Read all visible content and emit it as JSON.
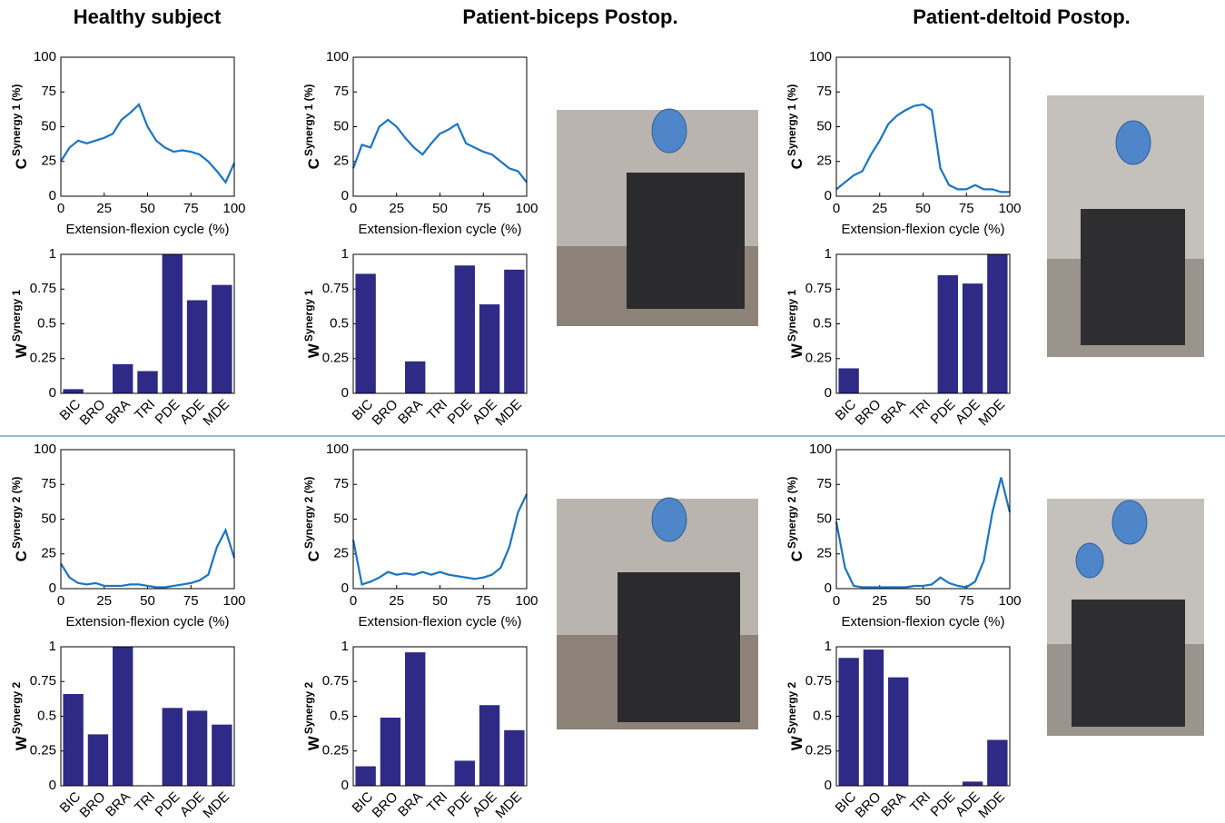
{
  "column_titles": [
    "Healthy subject",
    "Patient-biceps Postop.",
    "Patient-deltoid Postop."
  ],
  "chart_data": [
    {
      "type": "line",
      "ylabel": "C",
      "ylabel_sup": "Synergy 1 (%)",
      "xlabel": "Extension-flexion cycle (%)",
      "color": "#1a74c4",
      "x": [
        0,
        5,
        10,
        15,
        20,
        25,
        30,
        35,
        40,
        45,
        50,
        55,
        60,
        65,
        70,
        75,
        80,
        85,
        90,
        95,
        100
      ],
      "values": [
        25,
        35,
        40,
        38,
        40,
        42,
        45,
        55,
        60,
        66,
        50,
        40,
        35,
        32,
        33,
        32,
        30,
        25,
        18,
        10,
        24
      ],
      "xlim": [
        0,
        100
      ],
      "xticks": [
        0,
        25,
        50,
        75,
        100
      ],
      "ylim": [
        0,
        100
      ],
      "yticks": [
        0,
        25,
        50,
        75,
        100
      ]
    },
    {
      "type": "bar",
      "ylabel": "W",
      "ylabel_sup": "Synergy 1",
      "color": "#2e2a85",
      "categories": [
        "BIC",
        "BRO",
        "BRA",
        "TRI",
        "PDE",
        "ADE",
        "MDE"
      ],
      "values": [
        0.03,
        0,
        0.21,
        0.16,
        1,
        0.67,
        0.78
      ],
      "ylim": [
        0,
        1
      ],
      "yticks": [
        0,
        0.25,
        0.5,
        0.75,
        1
      ]
    },
    {
      "type": "line",
      "ylabel": "C",
      "ylabel_sup": "Synergy 1 (%)",
      "xlabel": "Extension-flexion cycle (%)",
      "color": "#1a74c4",
      "x": [
        0,
        5,
        10,
        15,
        20,
        25,
        30,
        35,
        40,
        45,
        50,
        55,
        60,
        65,
        70,
        75,
        80,
        85,
        90,
        95,
        100
      ],
      "values": [
        20,
        37,
        35,
        50,
        55,
        50,
        42,
        35,
        30,
        38,
        45,
        48,
        52,
        38,
        35,
        32,
        30,
        25,
        20,
        18,
        10
      ],
      "xlim": [
        0,
        100
      ],
      "xticks": [
        0,
        25,
        50,
        75,
        100
      ],
      "ylim": [
        0,
        100
      ],
      "yticks": [
        0,
        25,
        50,
        75,
        100
      ]
    },
    {
      "type": "bar",
      "ylabel": "W",
      "ylabel_sup": "Synergy 1",
      "color": "#2e2a85",
      "categories": [
        "BIC",
        "BRO",
        "BRA",
        "TRI",
        "PDE",
        "ADE",
        "MDE"
      ],
      "values": [
        0.86,
        0,
        0.23,
        0,
        0.92,
        0.64,
        0.89
      ],
      "ylim": [
        0,
        1
      ],
      "yticks": [
        0,
        0.25,
        0.5,
        0.75,
        1
      ]
    },
    {
      "type": "line",
      "ylabel": "C",
      "ylabel_sup": "Synergy 1 (%)",
      "xlabel": "Extension-flexion cycle (%)",
      "color": "#1a74c4",
      "x": [
        0,
        5,
        10,
        15,
        20,
        25,
        30,
        35,
        40,
        45,
        50,
        55,
        60,
        65,
        70,
        75,
        80,
        85,
        90,
        95,
        100
      ],
      "values": [
        5,
        10,
        15,
        18,
        30,
        40,
        52,
        58,
        62,
        65,
        66,
        62,
        20,
        8,
        5,
        5,
        8,
        5,
        5,
        3,
        3
      ],
      "xlim": [
        0,
        100
      ],
      "xticks": [
        0,
        25,
        50,
        75,
        100
      ],
      "ylim": [
        0,
        100
      ],
      "yticks": [
        0,
        25,
        50,
        75,
        100
      ]
    },
    {
      "type": "bar",
      "ylabel": "W",
      "ylabel_sup": "Synergy 1",
      "color": "#2e2a85",
      "categories": [
        "BIC",
        "BRO",
        "BRA",
        "TRI",
        "PDE",
        "ADE",
        "MDE"
      ],
      "values": [
        0.18,
        0,
        0,
        0,
        0.85,
        0.79,
        1
      ],
      "ylim": [
        0,
        1
      ],
      "yticks": [
        0,
        0.25,
        0.5,
        0.75,
        1
      ]
    },
    {
      "type": "line",
      "ylabel": "C",
      "ylabel_sup": "Synergy 2 (%)",
      "xlabel": "Extension-flexion cycle (%)",
      "color": "#1a74c4",
      "x": [
        0,
        5,
        10,
        15,
        20,
        25,
        30,
        35,
        40,
        45,
        50,
        55,
        60,
        65,
        70,
        75,
        80,
        85,
        90,
        95,
        100
      ],
      "values": [
        18,
        8,
        4,
        3,
        4,
        2,
        2,
        2,
        3,
        3,
        2,
        1,
        1,
        2,
        3,
        4,
        6,
        10,
        30,
        42,
        22
      ],
      "xlim": [
        0,
        100
      ],
      "xticks": [
        0,
        25,
        50,
        75,
        100
      ],
      "ylim": [
        0,
        100
      ],
      "yticks": [
        0,
        25,
        50,
        75,
        100
      ]
    },
    {
      "type": "bar",
      "ylabel": "W",
      "ylabel_sup": "Synergy 2",
      "color": "#2e2a85",
      "categories": [
        "BIC",
        "BRO",
        "BRA",
        "TRI",
        "PDE",
        "ADE",
        "MDE"
      ],
      "values": [
        0.66,
        0.37,
        1,
        0,
        0.56,
        0.54,
        0.44
      ],
      "ylim": [
        0,
        1
      ],
      "yticks": [
        0,
        0.25,
        0.5,
        0.75,
        1
      ]
    },
    {
      "type": "line",
      "ylabel": "C",
      "ylabel_sup": "Synergy 2 (%)",
      "xlabel": "Extension-flexion cycle (%)",
      "color": "#1a74c4",
      "x": [
        0,
        5,
        10,
        15,
        20,
        25,
        30,
        35,
        40,
        45,
        50,
        55,
        60,
        65,
        70,
        75,
        80,
        85,
        90,
        95,
        100
      ],
      "values": [
        35,
        3,
        5,
        8,
        12,
        10,
        11,
        10,
        12,
        10,
        12,
        10,
        9,
        8,
        7,
        8,
        10,
        15,
        30,
        55,
        68
      ],
      "xlim": [
        0,
        100
      ],
      "xticks": [
        0,
        25,
        50,
        75,
        100
      ],
      "ylim": [
        0,
        100
      ],
      "yticks": [
        0,
        25,
        50,
        75,
        100
      ]
    },
    {
      "type": "bar",
      "ylabel": "W",
      "ylabel_sup": "Synergy 2",
      "color": "#2e2a85",
      "categories": [
        "BIC",
        "BRO",
        "BRA",
        "TRI",
        "PDE",
        "ADE",
        "MDE"
      ],
      "values": [
        0.14,
        0.49,
        0.96,
        0,
        0.18,
        0.58,
        0.4
      ],
      "ylim": [
        0,
        1
      ],
      "yticks": [
        0,
        0.25,
        0.5,
        0.75,
        1
      ]
    },
    {
      "type": "line",
      "ylabel": "C",
      "ylabel_sup": "Synergy 2 (%)",
      "xlabel": "Extension-flexion cycle (%)",
      "color": "#1a74c4",
      "x": [
        0,
        5,
        10,
        15,
        20,
        25,
        30,
        35,
        40,
        45,
        50,
        55,
        60,
        65,
        70,
        75,
        80,
        85,
        90,
        95,
        100
      ],
      "values": [
        48,
        15,
        2,
        1,
        1,
        1,
        1,
        1,
        1,
        2,
        2,
        3,
        8,
        4,
        2,
        1,
        5,
        20,
        55,
        80,
        55
      ],
      "xlim": [
        0,
        100
      ],
      "xticks": [
        0,
        25,
        50,
        75,
        100
      ],
      "ylim": [
        0,
        100
      ],
      "yticks": [
        0,
        25,
        50,
        75,
        100
      ]
    },
    {
      "type": "bar",
      "ylabel": "W",
      "ylabel_sup": "Synergy 2",
      "color": "#2e2a85",
      "categories": [
        "BIC",
        "BRO",
        "BRA",
        "TRI",
        "PDE",
        "ADE",
        "MDE"
      ],
      "values": [
        0.92,
        0.98,
        0.78,
        0,
        0,
        0.03,
        0.33
      ],
      "ylim": [
        0,
        1
      ],
      "yticks": [
        0,
        0.25,
        0.5,
        0.75,
        1
      ]
    }
  ]
}
